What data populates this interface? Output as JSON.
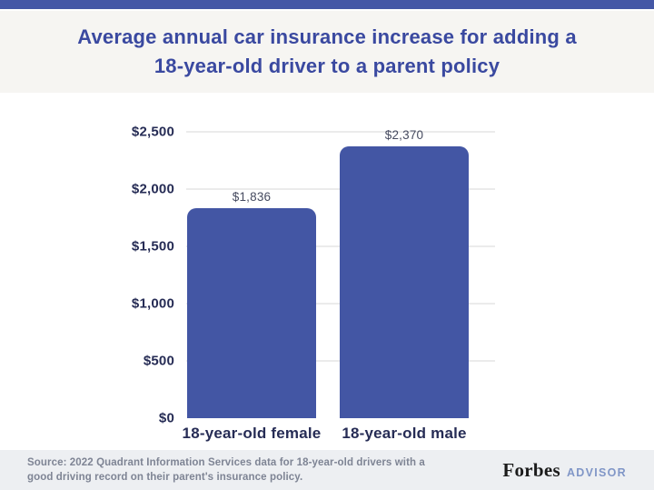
{
  "theme": {
    "accent_bar": "#4457a6",
    "bar_fill": "#4356a4",
    "title_color": "#3a49a0",
    "axis_label_color": "#262c55",
    "value_label_color": "#464b60",
    "grid_color": "#ebebeb",
    "header_bg": "#f6f5f2",
    "footer_bg": "#edeff2",
    "source_text_color": "#7e8494",
    "forbes_color": "#1b1b1b",
    "advisor_color": "#8096c7"
  },
  "header": {
    "title_line1": "Average annual car insurance increase for adding a",
    "title_line2": "18-year-old driver to a parent policy"
  },
  "chart_data": {
    "type": "bar",
    "title": "Average annual car insurance increase for adding a 18-year-old driver to a parent policy",
    "categories": [
      "18-year-old female",
      "18-year-old male"
    ],
    "values": [
      1836,
      2370
    ],
    "value_labels": [
      "$1,836",
      "$2,370"
    ],
    "y_ticks": [
      {
        "value": 0,
        "label": "$0"
      },
      {
        "value": 500,
        "label": "$500"
      },
      {
        "value": 1000,
        "label": "$1,000"
      },
      {
        "value": 1500,
        "label": "$1,500"
      },
      {
        "value": 2000,
        "label": "$2,000"
      },
      {
        "value": 2500,
        "label": "$2,500"
      }
    ],
    "ylim": [
      0,
      2500
    ],
    "xlabel": "",
    "ylabel": "",
    "grid": true,
    "legend": "none",
    "bar_color": "#4356a4"
  },
  "footer": {
    "source_line1": "Source: 2022 Quadrant Information Services data for 18-year-old drivers with a",
    "source_line2": "good driving record on their parent's insurance policy.",
    "brand_name": "Forbes",
    "brand_suffix": "ADVISOR"
  }
}
